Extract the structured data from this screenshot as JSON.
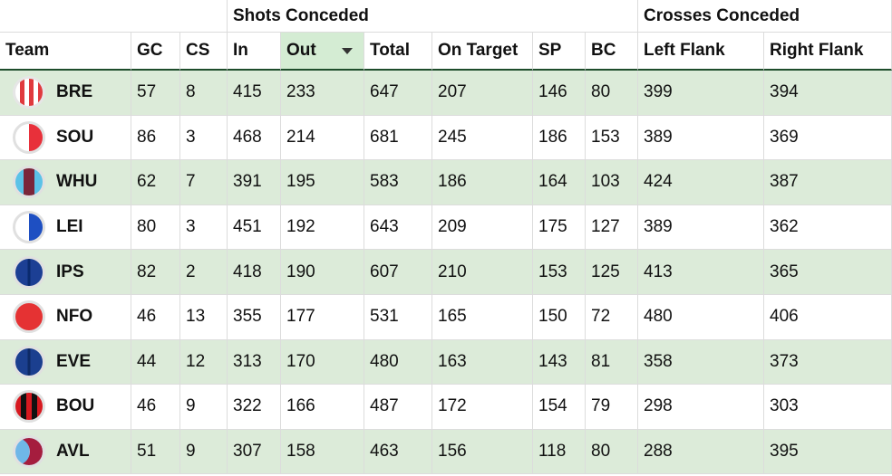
{
  "groups": {
    "shots": "Shots Conceded",
    "crosses": "Crosses Conceded"
  },
  "columns": {
    "team": "Team",
    "gc": "GC",
    "cs": "CS",
    "in": "In",
    "out": "Out",
    "total": "Total",
    "on_target": "On Target",
    "sp": "SP",
    "bc": "BC",
    "left_flank": "Left Flank",
    "right_flank": "Right Flank"
  },
  "sorted_column": "out",
  "colors": {
    "band": "#dcebd9",
    "sorted_header": "#d4ecd3",
    "header_rule": "#1e4d2b"
  },
  "rows": [
    {
      "team": "BRE",
      "gc": "57",
      "cs": "8",
      "in": "415",
      "out": "233",
      "total": "647",
      "on_target": "207",
      "sp": "146",
      "bc": "80",
      "left_flank": "399",
      "right_flank": "394",
      "badge_icon": "brentford-crest-icon"
    },
    {
      "team": "SOU",
      "gc": "86",
      "cs": "3",
      "in": "468",
      "out": "214",
      "total": "681",
      "on_target": "245",
      "sp": "186",
      "bc": "153",
      "left_flank": "389",
      "right_flank": "369",
      "badge_icon": "southampton-crest-icon"
    },
    {
      "team": "WHU",
      "gc": "62",
      "cs": "7",
      "in": "391",
      "out": "195",
      "total": "583",
      "on_target": "186",
      "sp": "164",
      "bc": "103",
      "left_flank": "424",
      "right_flank": "387",
      "badge_icon": "west-ham-crest-icon"
    },
    {
      "team": "LEI",
      "gc": "80",
      "cs": "3",
      "in": "451",
      "out": "192",
      "total": "643",
      "on_target": "209",
      "sp": "175",
      "bc": "127",
      "left_flank": "389",
      "right_flank": "362",
      "badge_icon": "leicester-crest-icon"
    },
    {
      "team": "IPS",
      "gc": "82",
      "cs": "2",
      "in": "418",
      "out": "190",
      "total": "607",
      "on_target": "210",
      "sp": "153",
      "bc": "125",
      "left_flank": "413",
      "right_flank": "365",
      "badge_icon": "ipswich-crest-icon"
    },
    {
      "team": "NFO",
      "gc": "46",
      "cs": "13",
      "in": "355",
      "out": "177",
      "total": "531",
      "on_target": "165",
      "sp": "150",
      "bc": "72",
      "left_flank": "480",
      "right_flank": "406",
      "badge_icon": "nottingham-forest-crest-icon"
    },
    {
      "team": "EVE",
      "gc": "44",
      "cs": "12",
      "in": "313",
      "out": "170",
      "total": "480",
      "on_target": "163",
      "sp": "143",
      "bc": "81",
      "left_flank": "358",
      "right_flank": "373",
      "badge_icon": "everton-crest-icon"
    },
    {
      "team": "BOU",
      "gc": "46",
      "cs": "9",
      "in": "322",
      "out": "166",
      "total": "487",
      "on_target": "172",
      "sp": "154",
      "bc": "79",
      "left_flank": "298",
      "right_flank": "303",
      "badge_icon": "bournemouth-crest-icon"
    },
    {
      "team": "AVL",
      "gc": "51",
      "cs": "9",
      "in": "307",
      "out": "158",
      "total": "463",
      "on_target": "156",
      "sp": "118",
      "bc": "80",
      "left_flank": "288",
      "right_flank": "395",
      "badge_icon": "aston-villa-crest-icon"
    }
  ]
}
